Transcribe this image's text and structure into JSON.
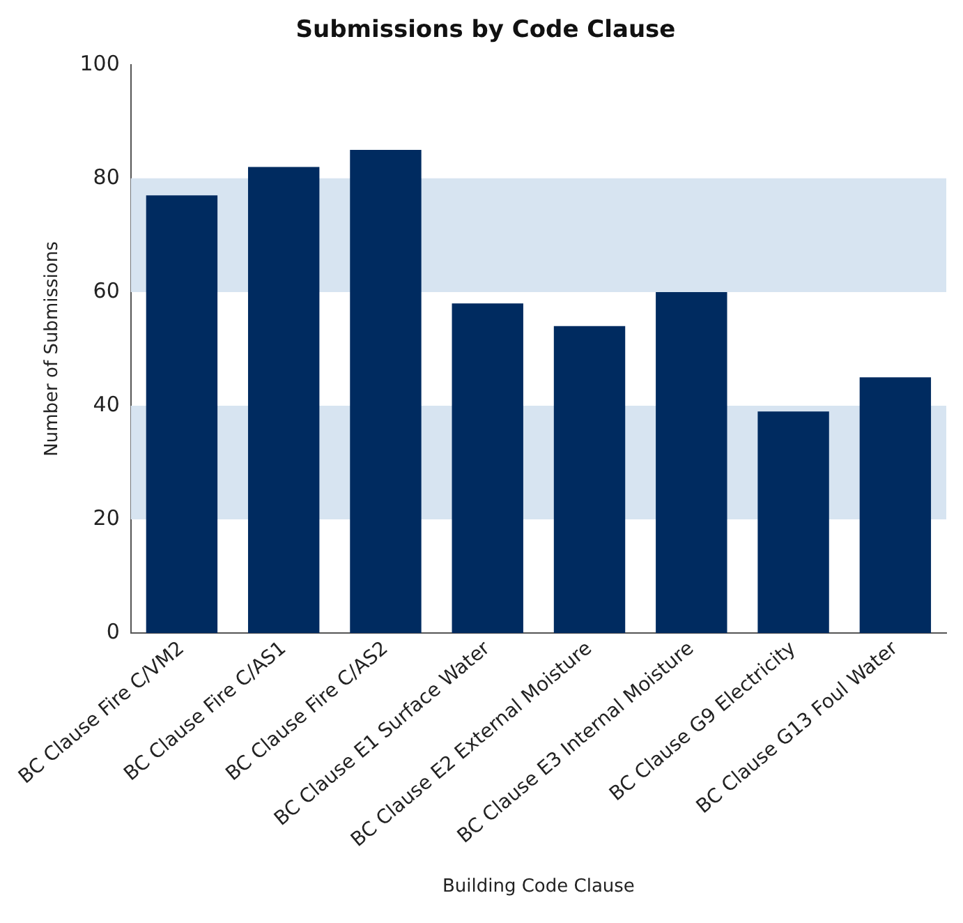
{
  "chart_data": {
    "type": "bar",
    "title": "Submissions by Code Clause",
    "xlabel": "Building Code Clause",
    "ylabel": "Number of Submissions",
    "categories": [
      "BC Clause Fire C/VM2",
      "BC Clause Fire C/AS1",
      "BC Clause Fire C/AS2",
      "BC Clause E1 Surface Water",
      "BC Clause E2 External Moisture",
      "BC Clause E3 Internal Moisture",
      "BC Clause G9 Electricity",
      "BC Clause G13 Foul Water"
    ],
    "values": [
      77,
      82,
      85,
      58,
      54,
      60,
      39,
      45
    ],
    "color": "#002b60",
    "ylim": [
      0,
      100
    ],
    "yticks": [
      0,
      20,
      40,
      60,
      80,
      100
    ],
    "grid": false,
    "legend": false,
    "bands": [
      {
        "axis": "y",
        "from": 20,
        "to": 40,
        "color": "#d7e4f1"
      },
      {
        "axis": "y",
        "from": 60,
        "to": 80,
        "color": "#d7e4f1"
      }
    ]
  }
}
